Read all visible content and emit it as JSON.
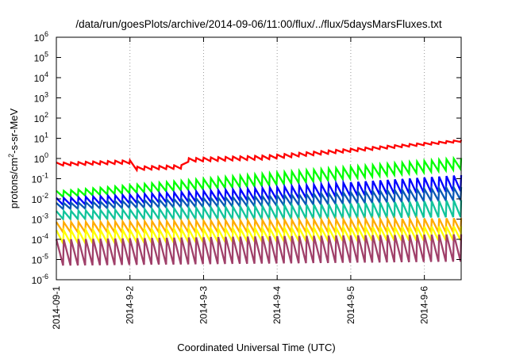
{
  "chart_data": {
    "type": "line",
    "title": "/data/run/goesPlots/archive/2014-09-06/11:00/flux/../flux/5daysMarsFluxes.txt",
    "xlabel": "Coordinated Universal Time (UTC)",
    "ylabel": {
      "pre": "protons/cm",
      "sup": "2",
      "post": "-s-sr-MeV"
    },
    "yscale": "log",
    "ylim_exp": [
      -6,
      6
    ],
    "yticks": [
      {
        "base": "10",
        "exp": "-6",
        "value": -6
      },
      {
        "base": "10",
        "exp": "-5",
        "value": -5
      },
      {
        "base": "10",
        "exp": "-4",
        "value": -4
      },
      {
        "base": "10",
        "exp": "-3",
        "value": -3
      },
      {
        "base": "10",
        "exp": "-2",
        "value": -2
      },
      {
        "base": "10",
        "exp": "-1",
        "value": -1
      },
      {
        "base": "10",
        "exp": "0",
        "value": 0
      },
      {
        "base": "10",
        "exp": "1",
        "value": 1
      },
      {
        "base": "10",
        "exp": "2",
        "value": 2
      },
      {
        "base": "10",
        "exp": "3",
        "value": 3
      },
      {
        "base": "10",
        "exp": "4",
        "value": 4
      },
      {
        "base": "10",
        "exp": "5",
        "value": 5
      },
      {
        "base": "10",
        "exp": "6",
        "value": 6
      }
    ],
    "x_range_days": [
      0,
      5.5
    ],
    "xticks": [
      {
        "label": "2014-09-1",
        "day": 0
      },
      {
        "label": "2014-9-2",
        "day": 1
      },
      {
        "label": "2014-9-3",
        "day": 2
      },
      {
        "label": "2014-9-4",
        "day": 3
      },
      {
        "label": "2014-9-5",
        "day": 4
      },
      {
        "label": "2014-9-6",
        "day": 5
      }
    ],
    "grid": "dotted-x",
    "sawtooth_period_days": 0.1,
    "series": [
      {
        "color": "#ff0000",
        "lo": [
          -0.35,
          -0.05,
          0.85
        ],
        "hi": [
          -0.2,
          0.15,
          0.95
        ],
        "dip": [
          1.0,
          1.7,
          -1.1
        ]
      },
      {
        "color": "#00ff00",
        "lo": [
          -1.9,
          -1.35,
          -0.5
        ],
        "hi": [
          -1.6,
          -0.75,
          0.05
        ]
      },
      {
        "color": "#0000ff",
        "lo": [
          -2.3,
          -2.05,
          -1.6
        ],
        "hi": [
          -1.95,
          -1.45,
          -0.8
        ]
      },
      {
        "color": "#0a58b5",
        "lo": [
          -2.5,
          -2.35,
          -2.05
        ],
        "hi": [
          -2.2,
          -1.85,
          -1.4
        ]
      },
      {
        "color": "#11c49b",
        "lo": [
          -3.0,
          -3.0,
          -2.9
        ],
        "hi": [
          -2.6,
          -2.35,
          -2.05
        ]
      },
      {
        "color": "#ffaa00",
        "lo": [
          -3.65,
          -3.65,
          -3.65
        ],
        "hi": [
          -3.15,
          -3.05,
          -2.95
        ]
      },
      {
        "color": "#ffff00",
        "lo": [
          -4.2,
          -4.1,
          -4.05
        ],
        "hi": [
          -3.55,
          -3.45,
          -3.35
        ]
      },
      {
        "color": "#a0406a",
        "lo": [
          -5.3,
          -5.2,
          -5.1
        ],
        "hi": [
          -4.0,
          -3.85,
          -3.75
        ]
      }
    ]
  }
}
